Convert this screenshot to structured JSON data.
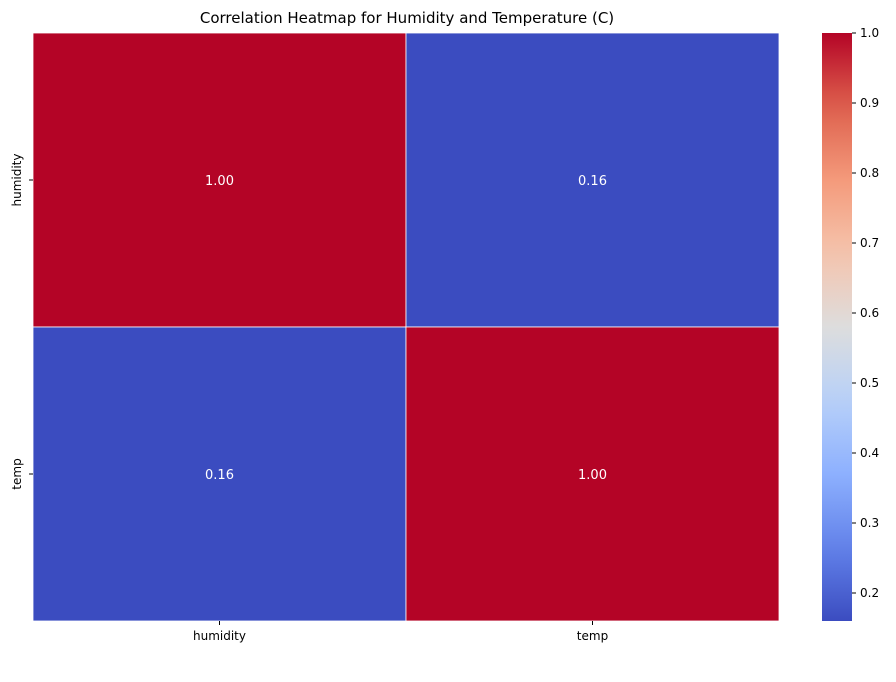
{
  "chart_data": {
    "type": "heatmap",
    "title": "Correlation Heatmap for Humidity and Temperature (C)",
    "xlabel": "",
    "ylabel": "",
    "x_categories": [
      "humidity",
      "temp"
    ],
    "y_categories": [
      "humidity",
      "temp"
    ],
    "values": [
      [
        1.0,
        0.16
      ],
      [
        0.16,
        1.0
      ]
    ],
    "annotations": [
      [
        "1.00",
        "0.16"
      ],
      [
        "0.16",
        "1.00"
      ]
    ],
    "colormap": "coolwarm",
    "color_low": "#3b4cc0",
    "color_high": "#b40426",
    "colorbar": {
      "vmin": 0.16,
      "vmax": 1.0,
      "ticks": [
        0.2,
        0.3,
        0.4,
        0.5,
        0.6,
        0.7,
        0.8,
        0.9,
        1.0
      ],
      "tick_labels": [
        "0.2",
        "0.3",
        "0.4",
        "0.5",
        "0.6",
        "0.7",
        "0.8",
        "0.9",
        "1.0"
      ],
      "placement": "right"
    },
    "gridlines_between_cells": true
  }
}
